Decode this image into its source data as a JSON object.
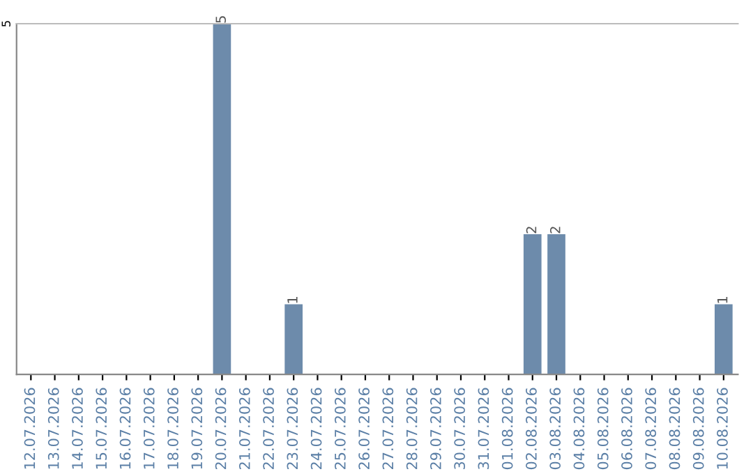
{
  "chart_data": {
    "type": "bar",
    "categories": [
      "12.07.2026",
      "13.07.2026",
      "14.07.2026",
      "15.07.2026",
      "16.07.2026",
      "17.07.2026",
      "18.07.2026",
      "19.07.2026",
      "20.07.2026",
      "21.07.2026",
      "22.07.2026",
      "23.07.2026",
      "24.07.2026",
      "25.07.2026",
      "26.07.2026",
      "27.07.2026",
      "28.07.2026",
      "29.07.2026",
      "30.07.2026",
      "31.07.2026",
      "01.08.2026",
      "02.08.2026",
      "03.08.2026",
      "04.08.2026",
      "05.08.2026",
      "06.08.2026",
      "07.08.2026",
      "08.08.2026",
      "09.08.2026",
      "10.08.2026"
    ],
    "values": [
      0,
      0,
      0,
      0,
      0,
      0,
      0,
      0,
      5,
      0,
      0,
      1,
      0,
      0,
      0,
      0,
      0,
      0,
      0,
      0,
      0,
      2,
      2,
      0,
      0,
      0,
      0,
      0,
      0,
      1
    ],
    "value_labels": [
      null,
      null,
      null,
      null,
      null,
      null,
      null,
      null,
      "5",
      null,
      null,
      "1",
      null,
      null,
      null,
      null,
      null,
      null,
      null,
      null,
      null,
      "2",
      "2",
      null,
      null,
      null,
      null,
      null,
      null,
      "1"
    ],
    "color": "#6d8bab",
    "ylim": [
      0,
      5
    ],
    "yticks": [
      5
    ]
  }
}
